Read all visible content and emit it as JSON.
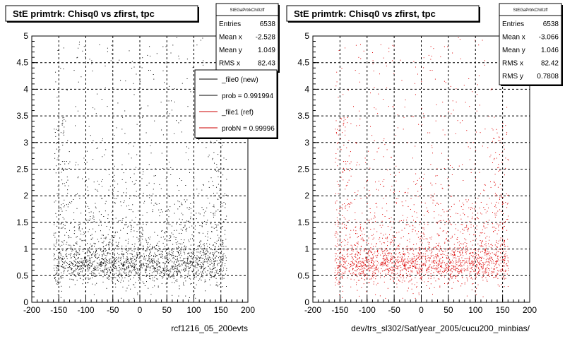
{
  "chart_data": [
    {
      "type": "scatter",
      "title": "StE primtrk: Chisq0 vs zfirst, tpc",
      "xlabel": "rcf1216_05_200evts",
      "ylabel": "",
      "xlim": [
        -200,
        200
      ],
      "ylim": [
        0,
        5
      ],
      "grid": true,
      "x_ticks": [
        "-200",
        "-150",
        "-100",
        "-50",
        "0",
        "50",
        "100",
        "150",
        "200"
      ],
      "y_ticks": [
        "0",
        "0.5",
        "1",
        "1.5",
        "2",
        "2.5",
        "3",
        "3.5",
        "4",
        "4.5",
        "5"
      ],
      "point_color": "#000000",
      "stats": {
        "name": "StEGaPrtrkChi0zff",
        "rows": [
          {
            "label": "Entries",
            "value": "6538"
          },
          {
            "label": "Mean x",
            "value": "-2.528"
          },
          {
            "label": "Mean y",
            "value": "1.049"
          },
          {
            "label": "RMS x",
            "value": "82.43"
          }
        ]
      },
      "legend": [
        {
          "label": "_file0 (new)",
          "color": "#000000"
        },
        {
          "label": "prob = 0.991994",
          "color": "#000000"
        },
        {
          "label": "_file1 (ref)",
          "color": "#cc0000"
        },
        {
          "label": "probN = 0.99996",
          "color": "#cc0000"
        }
      ],
      "density": {
        "x_range": [
          -160,
          160
        ],
        "core_y_range": [
          0.4,
          1.2
        ],
        "tail_y_range": [
          0,
          5
        ],
        "entries": 6538
      }
    },
    {
      "type": "scatter",
      "title": "StE primtrk: Chisq0 vs zfirst, tpc",
      "xlabel": "dev/trs_sl302/Sat/year_2005/cucu200_minbias/",
      "ylabel": "",
      "xlim": [
        -200,
        200
      ],
      "ylim": [
        0,
        5
      ],
      "grid": true,
      "x_ticks": [
        "-200",
        "-150",
        "-100",
        "-50",
        "0",
        "50",
        "100",
        "150",
        "200"
      ],
      "y_ticks": [
        "0",
        "0.5",
        "1",
        "1.5",
        "2",
        "2.5",
        "3",
        "3.5",
        "4",
        "4.5",
        "5"
      ],
      "point_color": "#dd0000",
      "stats": {
        "name": "StEGaPrtrkChi0zff",
        "rows": [
          {
            "label": "Entries",
            "value": "6538"
          },
          {
            "label": "Mean x",
            "value": "-3.066"
          },
          {
            "label": "Mean y",
            "value": "1.046"
          },
          {
            "label": "RMS x",
            "value": "82.42"
          },
          {
            "label": "RMS y",
            "value": "0.7808"
          }
        ]
      },
      "density": {
        "x_range": [
          -160,
          160
        ],
        "core_y_range": [
          0.4,
          1.2
        ],
        "tail_y_range": [
          0,
          5
        ],
        "entries": 6538
      }
    }
  ]
}
